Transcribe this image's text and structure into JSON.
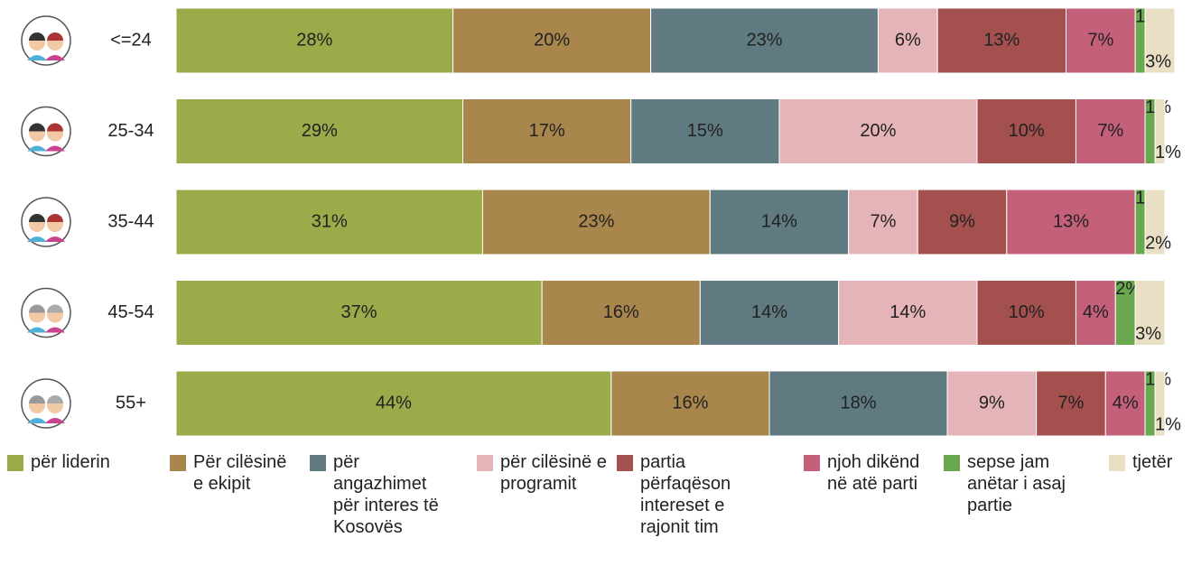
{
  "chart_data": {
    "type": "stacked-bar-horizontal",
    "categories": [
      "<=24",
      "25-34",
      "35-44",
      "45-54",
      "55+"
    ],
    "xlim": [
      0,
      100
    ],
    "series": [
      {
        "name": "për liderin",
        "color": "#9aab4a",
        "values": [
          28,
          29,
          31,
          37,
          44
        ],
        "value_labels": [
          "28%",
          "29%",
          "31%",
          "37%",
          "44%"
        ]
      },
      {
        "name": "Për cilësinë e ekipit",
        "color": "#a8864c",
        "values": [
          20,
          17,
          23,
          16,
          16
        ],
        "value_labels": [
          "20%",
          "17%",
          "23%",
          "16%",
          "16%"
        ]
      },
      {
        "name": "për angazhimet për interes të Kosovës",
        "color": "#5f7a80",
        "values": [
          23,
          15,
          14,
          14,
          18
        ],
        "value_labels": [
          "23%",
          "15%",
          "14%",
          "14%",
          "18%"
        ]
      },
      {
        "name": "për cilësinë e programit",
        "color": "#e4b4b8",
        "values": [
          6,
          20,
          7,
          14,
          9
        ],
        "value_labels": [
          "6%",
          "20%",
          "7%",
          "14%",
          "9%"
        ]
      },
      {
        "name": "partia përfaqëson intereset e rajonit tim",
        "color": "#a3504e",
        "values": [
          13,
          10,
          9,
          10,
          7
        ],
        "value_labels": [
          "13%",
          "10%",
          "9%",
          "10%",
          "7%"
        ]
      },
      {
        "name": "njoh dikënd në atë parti",
        "color": "#c4607a",
        "values": [
          7,
          7,
          13,
          4,
          4
        ],
        "value_labels": [
          "7%",
          "7%",
          "13%",
          "4%",
          "4%"
        ]
      },
      {
        "name": "sepse jam anëtar i asaj partie",
        "color": "#6aa84f",
        "values": [
          1,
          1,
          1,
          2,
          1
        ],
        "value_labels": [
          "1%",
          "1%",
          "1%",
          "2%",
          "1%"
        ]
      },
      {
        "name": "tjetër",
        "color": "#e8dfc4",
        "values": [
          3,
          1,
          2,
          3,
          1
        ],
        "value_labels": [
          "3%",
          "1%",
          "2%",
          "3%",
          "1%"
        ]
      }
    ]
  }
}
